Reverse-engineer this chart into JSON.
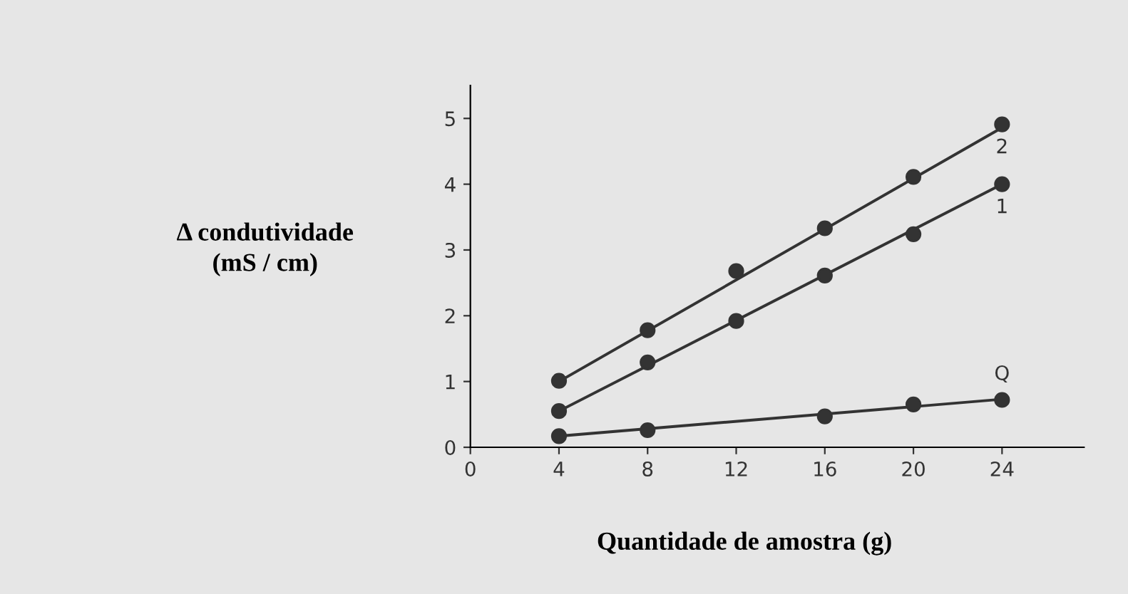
{
  "chart_data": {
    "type": "scatter",
    "xlabel": "Quantidade de amostra (g)",
    "ylabel": "Δ condutividade\n(mS / cm)",
    "xlim": [
      0,
      27.7
    ],
    "ylim": [
      0,
      5.5
    ],
    "xticks": [
      0,
      4,
      8,
      12,
      16,
      20,
      24
    ],
    "yticks": [
      0,
      1,
      2,
      3,
      4,
      5
    ],
    "grid": false,
    "legend": false,
    "marker": "circle",
    "series": [
      {
        "name": "2",
        "color": "#333333",
        "x": [
          4,
          8,
          12,
          16,
          20,
          24
        ],
        "values": [
          1.01,
          1.78,
          2.68,
          3.33,
          4.11,
          4.91
        ]
      },
      {
        "name": "1",
        "color": "#333333",
        "x": [
          4,
          8,
          12,
          16,
          20,
          24
        ],
        "values": [
          0.55,
          1.29,
          1.92,
          2.61,
          3.24,
          4.0
        ]
      },
      {
        "name": "Q",
        "color": "#333333",
        "x": [
          4,
          8,
          16,
          20,
          24
        ],
        "values": [
          0.17,
          0.26,
          0.47,
          0.65,
          0.72
        ]
      },
      {
        "type": "line",
        "color": "#333333",
        "x": [
          4,
          24
        ],
        "values": [
          1.0,
          4.86
        ],
        "marker": "none"
      },
      {
        "type": "line",
        "color": "#333333",
        "x": [
          4,
          24
        ],
        "values": [
          0.55,
          4.0
        ],
        "marker": "none"
      },
      {
        "type": "line",
        "color": "#333333",
        "x": [
          4,
          24
        ],
        "values": [
          0.17,
          0.73
        ],
        "marker": "none"
      }
    ]
  }
}
